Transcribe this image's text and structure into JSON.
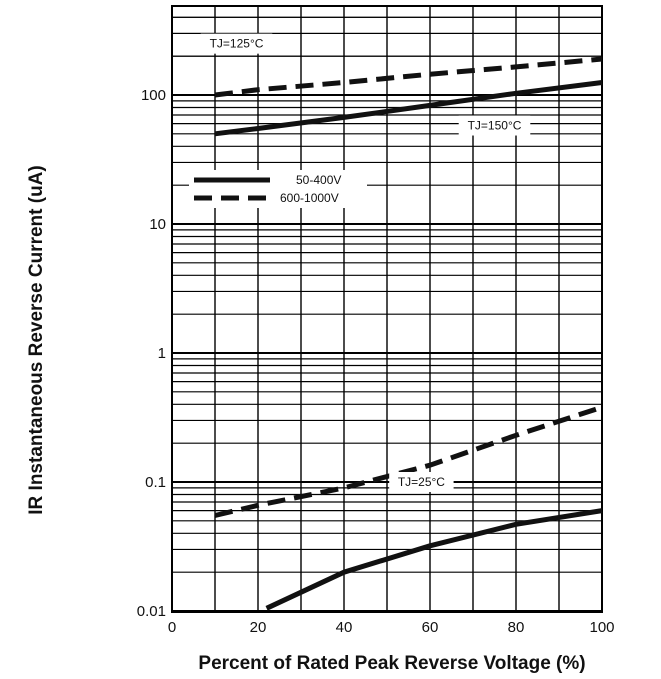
{
  "chart_data": {
    "type": "line",
    "xlabel": "Percent of Rated Peak Reverse Voltage (%)",
    "ylabel": "IR Instantaneous Reverse Current (uA)",
    "x_ticks": [
      0,
      20,
      40,
      60,
      80,
      100
    ],
    "x_tick_labels": [
      "0",
      "20",
      "40",
      "60",
      "80",
      "100"
    ],
    "y_ticks": [
      0.01,
      0.1,
      1,
      10,
      100
    ],
    "y_tick_labels": [
      "0.01",
      "0.1",
      "1",
      "10",
      "100"
    ],
    "xlim": [
      0,
      100
    ],
    "ylim": [
      0.01,
      400
    ],
    "y_scale": "log",
    "grid": true,
    "legend_position": "left, below top",
    "legend": [
      {
        "label": "50-400V",
        "style": "solid"
      },
      {
        "label": "600-1000V",
        "style": "dashed"
      }
    ],
    "annotations": [
      {
        "text": "TJ=125°C",
        "x": 15,
        "y": 250
      },
      {
        "text": "TJ=150°C",
        "x": 75,
        "y": 58
      },
      {
        "text": "TJ=25°C",
        "x": 58,
        "y": 0.1
      }
    ],
    "series": [
      {
        "style": "dashed",
        "x": [
          10,
          20,
          40,
          60,
          80,
          100
        ],
        "y": [
          100,
          110,
          125,
          145,
          165,
          190
        ]
      },
      {
        "style": "solid",
        "x": [
          10,
          20,
          40,
          60,
          80,
          100
        ],
        "y": [
          50,
          55,
          67,
          83,
          103,
          125
        ]
      },
      {
        "style": "dashed",
        "x": [
          10,
          20,
          40,
          60,
          80,
          100
        ],
        "y": [
          0.055,
          0.066,
          0.09,
          0.135,
          0.23,
          0.38
        ]
      },
      {
        "style": "solid",
        "x": [
          22,
          40,
          60,
          80,
          100
        ],
        "y": [
          0.0105,
          0.02,
          0.032,
          0.047,
          0.06
        ]
      }
    ]
  }
}
